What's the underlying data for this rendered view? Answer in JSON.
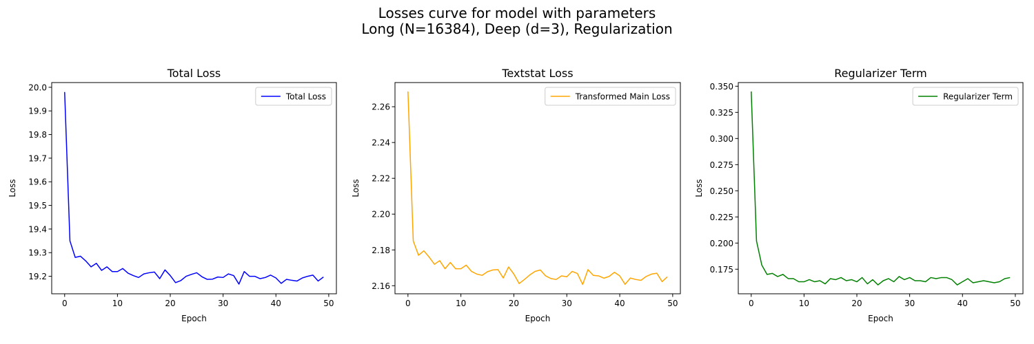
{
  "figure": {
    "suptitle_line1": "Losses curve for model with parameters",
    "suptitle_line2": "Long (N=16384), Deep (d=3), Regularization"
  },
  "chart_data": [
    {
      "type": "line",
      "title": "Total Loss",
      "xlabel": "Epoch",
      "ylabel": "Loss",
      "xlim": [
        -2.45,
        51.45
      ],
      "ylim": [
        19.126,
        20.02
      ],
      "xticks": [
        0,
        10,
        20,
        30,
        40,
        50
      ],
      "xtick_labels": [
        "0",
        "10",
        "20",
        "30",
        "40",
        "50"
      ],
      "yticks": [
        19.2,
        19.3,
        19.4,
        19.5,
        19.6,
        19.7,
        19.8,
        19.9,
        20.0
      ],
      "ytick_labels": [
        "19.2",
        "19.3",
        "19.4",
        "19.5",
        "19.6",
        "19.7",
        "19.8",
        "19.9",
        "20.0"
      ],
      "legend_position": "top-right",
      "series": [
        {
          "name": "Total Loss",
          "color": "#0000ff",
          "x": [
            0,
            1,
            2,
            3,
            4,
            5,
            6,
            7,
            8,
            9,
            10,
            11,
            12,
            13,
            14,
            15,
            16,
            17,
            18,
            19,
            20,
            21,
            22,
            23,
            24,
            25,
            26,
            27,
            28,
            29,
            30,
            31,
            32,
            33,
            34,
            35,
            36,
            37,
            38,
            39,
            40,
            41,
            42,
            43,
            44,
            45,
            46,
            47,
            48,
            49
          ],
          "values": [
            19.98,
            19.35,
            19.28,
            19.285,
            19.265,
            19.24,
            19.255,
            19.225,
            19.24,
            19.22,
            19.22,
            19.233,
            19.213,
            19.203,
            19.195,
            19.21,
            19.215,
            19.218,
            19.19,
            19.227,
            19.203,
            19.173,
            19.182,
            19.2,
            19.208,
            19.215,
            19.198,
            19.187,
            19.188,
            19.197,
            19.195,
            19.21,
            19.203,
            19.167,
            19.22,
            19.2,
            19.2,
            19.19,
            19.195,
            19.205,
            19.193,
            19.17,
            19.187,
            19.183,
            19.18,
            19.193,
            19.2,
            19.205,
            19.18,
            19.197
          ]
        }
      ]
    },
    {
      "type": "line",
      "title": "Textstat Loss",
      "xlabel": "Epoch",
      "ylabel": "Loss",
      "xlim": [
        -2.45,
        51.45
      ],
      "ylim": [
        2.1555,
        2.2735
      ],
      "xticks": [
        0,
        10,
        20,
        30,
        40,
        50
      ],
      "xtick_labels": [
        "0",
        "10",
        "20",
        "30",
        "40",
        "50"
      ],
      "yticks": [
        2.16,
        2.18,
        2.2,
        2.22,
        2.24,
        2.26
      ],
      "ytick_labels": [
        "2.16",
        "2.18",
        "2.20",
        "2.22",
        "2.24",
        "2.26"
      ],
      "legend_position": "top-right",
      "series": [
        {
          "name": "Transformed Main Loss",
          "color": "#ffa500",
          "x": [
            0,
            1,
            2,
            3,
            4,
            5,
            6,
            7,
            8,
            9,
            10,
            11,
            12,
            13,
            14,
            15,
            16,
            17,
            18,
            19,
            20,
            21,
            22,
            23,
            24,
            25,
            26,
            27,
            28,
            29,
            30,
            31,
            32,
            33,
            34,
            35,
            36,
            37,
            38,
            39,
            40,
            41,
            42,
            43,
            44,
            45,
            46,
            47,
            48,
            49
          ],
          "values": [
            2.2685,
            2.185,
            2.177,
            2.1795,
            2.176,
            2.172,
            2.174,
            2.1695,
            2.173,
            2.1695,
            2.1695,
            2.1715,
            2.168,
            2.1665,
            2.1658,
            2.1678,
            2.1688,
            2.169,
            2.1643,
            2.1705,
            2.1665,
            2.1612,
            2.1635,
            2.166,
            2.168,
            2.1688,
            2.1655,
            2.164,
            2.1635,
            2.1655,
            2.165,
            2.168,
            2.1668,
            2.1607,
            2.169,
            2.1658,
            2.1655,
            2.1642,
            2.1652,
            2.1675,
            2.1655,
            2.1608,
            2.1643,
            2.1635,
            2.163,
            2.1652,
            2.1665,
            2.167,
            2.1623,
            2.165
          ]
        }
      ]
    },
    {
      "type": "line",
      "title": "Regularizer Term",
      "xlabel": "Epoch",
      "ylabel": "Loss",
      "xlim": [
        -2.45,
        51.45
      ],
      "ylim": [
        0.1515,
        0.3535
      ],
      "xticks": [
        0,
        10,
        20,
        30,
        40,
        50
      ],
      "xtick_labels": [
        "0",
        "10",
        "20",
        "30",
        "40",
        "50"
      ],
      "yticks": [
        0.175,
        0.2,
        0.225,
        0.25,
        0.275,
        0.3,
        0.325,
        0.35
      ],
      "ytick_labels": [
        "0.175",
        "0.200",
        "0.225",
        "0.250",
        "0.275",
        "0.300",
        "0.325",
        "0.350"
      ],
      "legend_position": "top-right",
      "series": [
        {
          "name": "Regularizer Term",
          "color": "#008000",
          "x": [
            0,
            1,
            2,
            3,
            4,
            5,
            6,
            7,
            8,
            9,
            10,
            11,
            12,
            13,
            14,
            15,
            16,
            17,
            18,
            19,
            20,
            21,
            22,
            23,
            24,
            25,
            26,
            27,
            28,
            29,
            30,
            31,
            32,
            33,
            34,
            35,
            36,
            37,
            38,
            39,
            40,
            41,
            42,
            43,
            44,
            45,
            46,
            47,
            48,
            49
          ],
          "values": [
            0.345,
            0.202,
            0.179,
            0.17,
            0.171,
            0.168,
            0.17,
            0.166,
            0.166,
            0.163,
            0.163,
            0.165,
            0.163,
            0.164,
            0.161,
            0.166,
            0.165,
            0.167,
            0.164,
            0.165,
            0.163,
            0.167,
            0.161,
            0.165,
            0.16,
            0.164,
            0.166,
            0.163,
            0.168,
            0.165,
            0.167,
            0.164,
            0.164,
            0.163,
            0.167,
            0.166,
            0.167,
            0.167,
            0.165,
            0.16,
            0.163,
            0.166,
            0.162,
            0.163,
            0.164,
            0.163,
            0.162,
            0.163,
            0.166,
            0.167
          ]
        }
      ]
    }
  ]
}
